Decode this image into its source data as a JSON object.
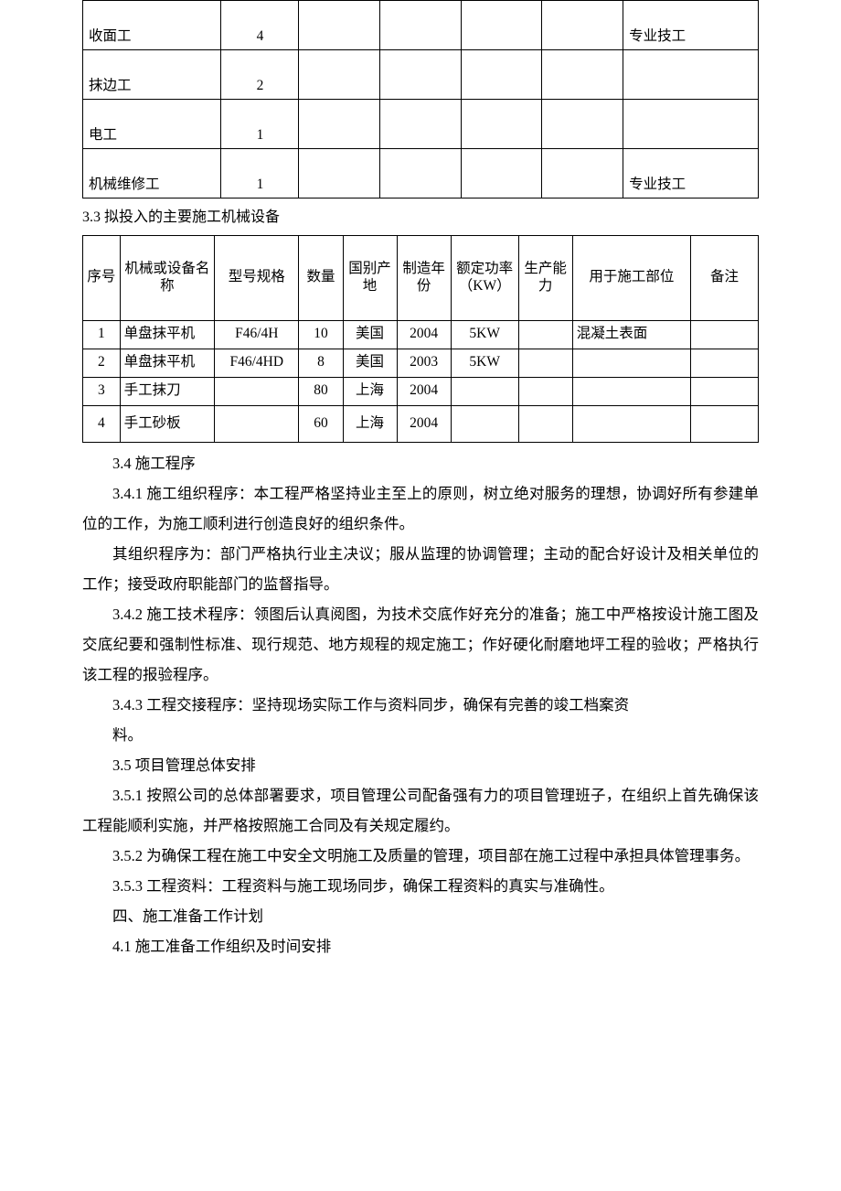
{
  "table1": {
    "col_widths_pct": [
      20.5,
      11.5,
      12,
      12,
      12,
      12,
      20
    ],
    "rows": [
      {
        "name": "收面工",
        "qty": "4",
        "c3": "",
        "c4": "",
        "c5": "",
        "c6": "",
        "note": "专业技工"
      },
      {
        "name": "抹边工",
        "qty": "2",
        "c3": "",
        "c4": "",
        "c5": "",
        "c6": "",
        "note": ""
      },
      {
        "name": "电工",
        "qty": "1",
        "c3": "",
        "c4": "",
        "c5": "",
        "c6": "",
        "note": ""
      },
      {
        "name": "机械维修工",
        "qty": "1",
        "c3": "",
        "c4": "",
        "c5": "",
        "c6": "",
        "note": "专业技工"
      }
    ]
  },
  "heading_3_3": "3.3 拟投入的主要施工机械设备",
  "table2": {
    "col_widths_pct": [
      5.5,
      14,
      12.5,
      6.5,
      8,
      8,
      10,
      8,
      17.5,
      10
    ],
    "headers": [
      "序号",
      "机械或设备名称",
      "型号规格",
      "数量",
      "国别产地",
      "制造年份",
      "额定功率（KW）",
      "生产能力",
      "用于施工部位",
      "备注"
    ],
    "rows": [
      {
        "no": "1",
        "name": "单盘抹平机",
        "model": "F46/4H",
        "qty": "10",
        "origin": "美国",
        "year": "2004",
        "power": "5KW",
        "capacity": "",
        "usage": "混凝土表面",
        "note": ""
      },
      {
        "no": "2",
        "name": "单盘抹平机",
        "model": "F46/4HD",
        "qty": "8",
        "origin": "美国",
        "year": "2003",
        "power": "5KW",
        "capacity": "",
        "usage": "",
        "note": ""
      },
      {
        "no": "3",
        "name": "手工抹刀",
        "model": "",
        "qty": "80",
        "origin": "上海",
        "year": "2004",
        "power": "",
        "capacity": "",
        "usage": "",
        "note": ""
      },
      {
        "no": "4",
        "name": "手工砂板",
        "model": "",
        "qty": "60",
        "origin": "上海",
        "year": "2004",
        "power": "",
        "capacity": "",
        "usage": "",
        "note": ""
      }
    ]
  },
  "paragraphs": [
    {
      "text": "3.4 施工程序",
      "indent": true
    },
    {
      "text": "3.4.1 施工组织程序：本工程严格坚持业主至上的原则，树立绝对服务的理想，协调好所有参建单位的工作，为施工顺利进行创造良好的组织条件。",
      "indent": true
    },
    {
      "text": "其组织程序为：部门严格执行业主决议；服从监理的协调管理；主动的配合好设计及相关单位的工作；接受政府职能部门的监督指导。",
      "indent": true
    },
    {
      "text": "3.4.2 施工技术程序：领图后认真阅图，为技术交底作好充分的准备；施工中严格按设计施工图及交底纪要和强制性标准、现行规范、地方规程的规定施工；作好硬化耐磨地坪工程的验收；严格执行该工程的报验程序。",
      "indent": true
    },
    {
      "text": "3.4.3 工程交接程序：坚持现场实际工作与资料同步，确保有完善的竣工档案资",
      "indent": true
    },
    {
      "text": "料。",
      "indent": true
    },
    {
      "text": "3.5 项目管理总体安排",
      "indent": true
    },
    {
      "text": "3.5.1 按照公司的总体部署要求，项目管理公司配备强有力的项目管理班子，在组织上首先确保该工程能顺利实施，并严格按照施工合同及有关规定履约。",
      "indent": true
    },
    {
      "text": "3.5.2 为确保工程在施工中安全文明施工及质量的管理，项目部在施工过程中承担具体管理事务。",
      "indent": true
    },
    {
      "text": "3.5.3 工程资料：工程资料与施工现场同步，确保工程资料的真实与准确性。",
      "indent": true
    },
    {
      "text": "四、施工准备工作计划",
      "indent": true
    },
    {
      "text": "4.1 施工准备工作组织及时间安排",
      "indent": true
    }
  ]
}
